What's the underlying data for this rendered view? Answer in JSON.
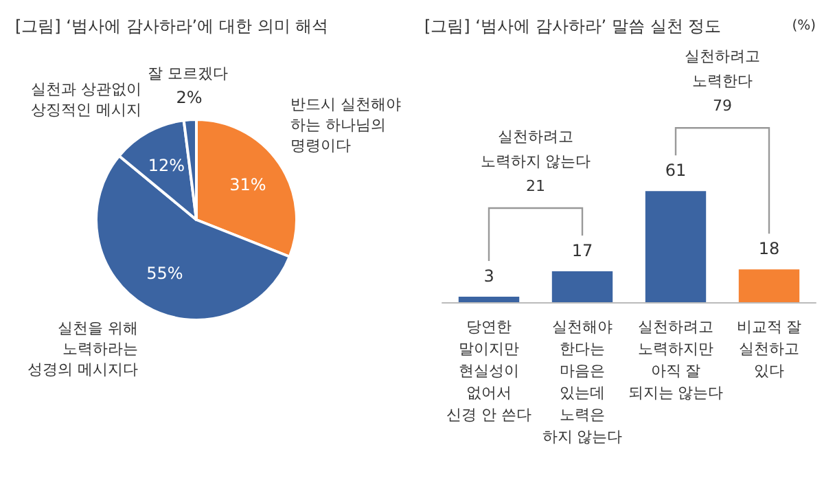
{
  "chart_data": [
    {
      "type": "pie",
      "title": "[그림] ‘범사에 감사하라’에 대한 의미 해석",
      "categories": [
        "반드시 실천해야\n하는 하나님의\n명령이다",
        "실천을 위해\n노력하라는\n성경의 메시지다",
        "실천과 상관없이\n상징적인 메시지",
        "잘 모르겠다"
      ],
      "values": [
        31,
        55,
        12,
        2
      ],
      "value_labels": [
        "31%",
        "55%",
        "12%",
        "2%"
      ],
      "colors": [
        "#f58233",
        "#3b64a2",
        "#3b64a2",
        "#3b64a2"
      ]
    },
    {
      "type": "bar",
      "title": "[그림] ‘범사에 감사하라’ 말씀 실천 정도",
      "categories": [
        "당연한\n말이지만\n현실성이\n없어서\n신경 안 쓴다",
        "실천해야\n한다는\n마음은\n있는데\n노력은\n하지 않는다",
        "실천하려고\n노력하지만\n아직 잘\n되지는 않는다",
        "비교적 잘\n실천하고\n있다"
      ],
      "values": [
        3,
        17,
        61,
        18
      ],
      "colors": [
        "#3b64a2",
        "#3b64a2",
        "#3b64a2",
        "#f58233"
      ],
      "data_labels": true,
      "annotations": [
        "실천하려고\n노력하지 않는다\n21",
        "실천하려고\n노력한다\n79",
        "(%)"
      ]
    }
  ]
}
